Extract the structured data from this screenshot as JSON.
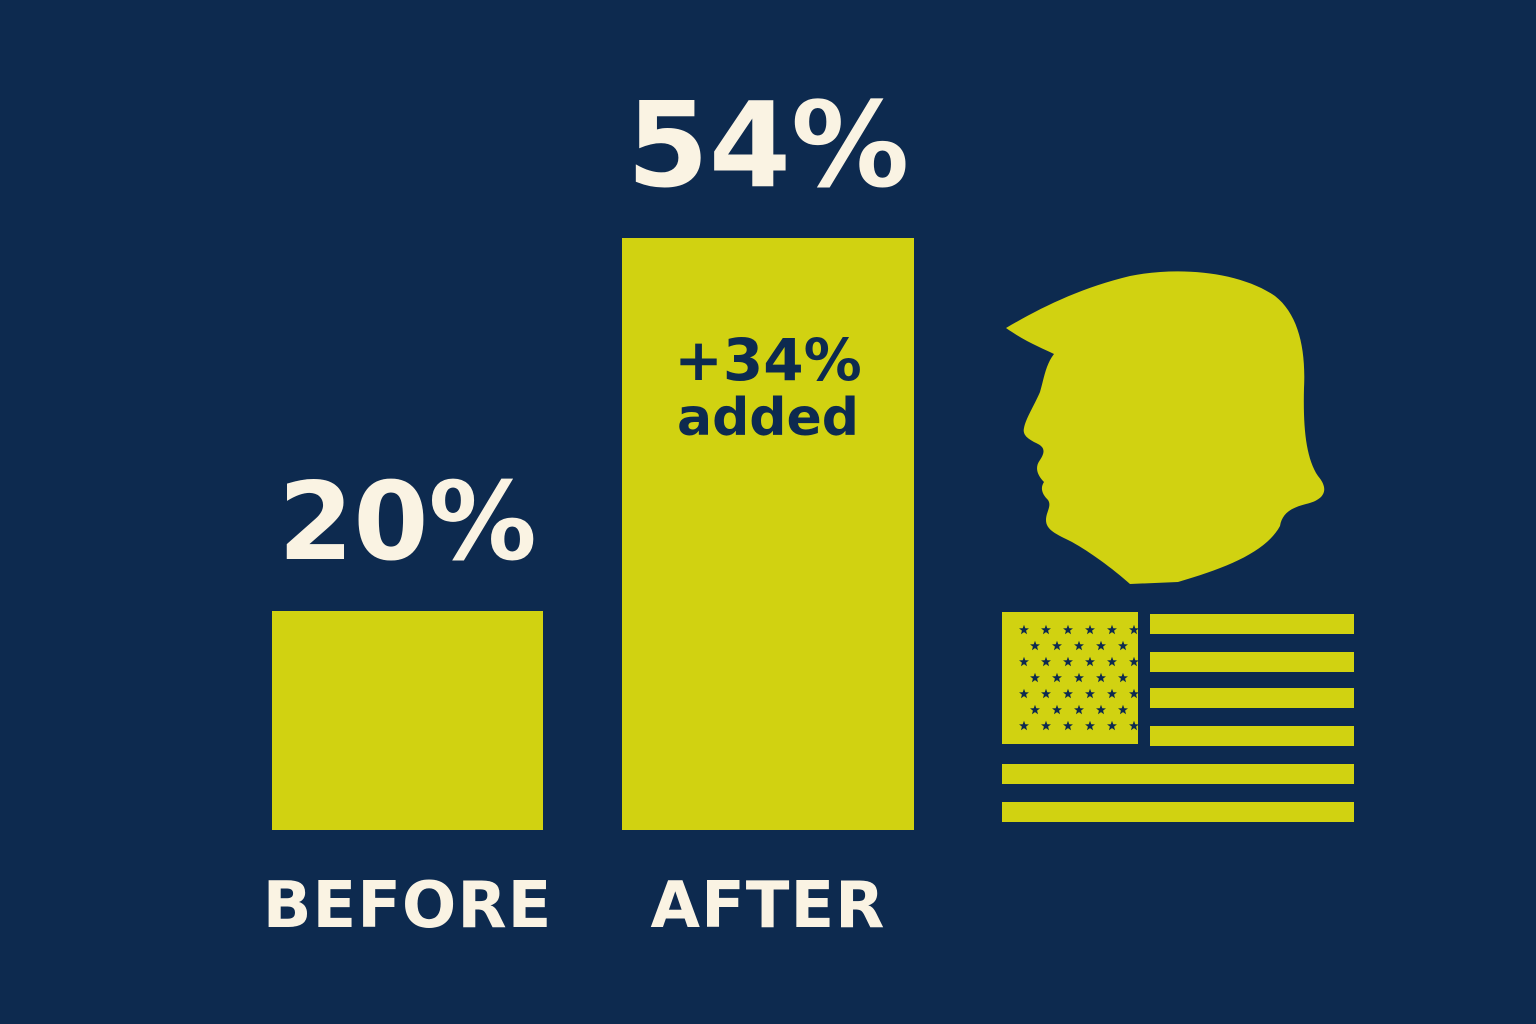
{
  "chart_data": {
    "type": "bar",
    "categories": [
      "BEFORE",
      "AFTER"
    ],
    "values": [
      20,
      54
    ],
    "value_labels": [
      "20%",
      "54%"
    ],
    "annotation": {
      "category": "AFTER",
      "line1": "+34%",
      "line2": "added"
    },
    "ylim": [
      0,
      54
    ],
    "grid": false,
    "title": "",
    "xlabel": "",
    "ylabel": ""
  },
  "icons": [
    "portrait-silhouette-icon",
    "american-flag-icon"
  ],
  "colors": {
    "background": "#0d2a4f",
    "bar": "#d1d211",
    "text": "#faf3e3",
    "annotation_text": "#0d2a4f"
  }
}
